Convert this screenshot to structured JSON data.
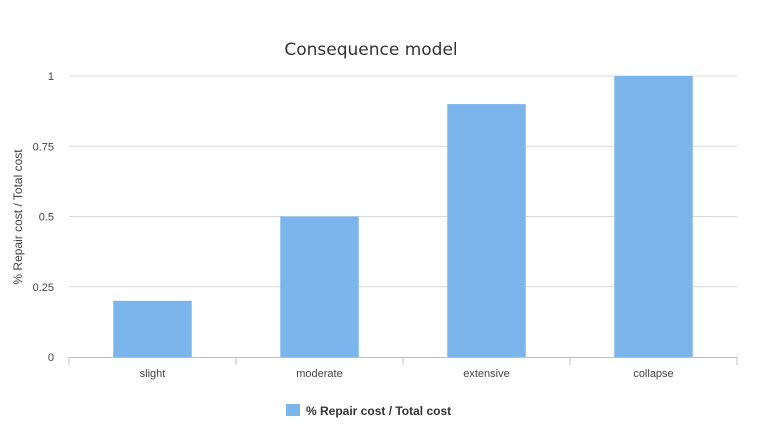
{
  "chart_data": {
    "type": "bar",
    "title": "Consequence model",
    "xlabel": "",
    "ylabel": "% Repair cost  / Total cost",
    "categories": [
      "slight",
      "moderate",
      "extensive",
      "collapse"
    ],
    "series": [
      {
        "name": "% Repair cost  / Total cost",
        "values": [
          0.2,
          0.5,
          0.9,
          1.0
        ]
      }
    ],
    "ylim": [
      0,
      1
    ],
    "yticks": [
      "0",
      "0.25",
      "0.5",
      "0.75",
      "1"
    ],
    "grid": true,
    "legend": "bottom-center",
    "bar_color": "#7cb5ec"
  }
}
